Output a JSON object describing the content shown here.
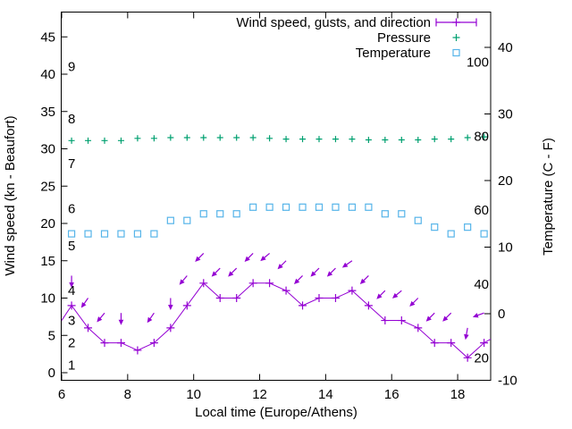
{
  "colors": {
    "background": "#ffffff",
    "text": "#000000",
    "wind": "#9400d3",
    "pressure": "#00a070",
    "temperature": "#56b4e9"
  },
  "legend": {
    "items": [
      {
        "label": "Wind speed, gusts, and direction",
        "marker": "errorbar",
        "color": "#9400d3"
      },
      {
        "label": "Pressure",
        "marker": "plus",
        "color": "#00a070"
      },
      {
        "label": "Temperature",
        "marker": "open-square",
        "color": "#56b4e9"
      }
    ]
  },
  "axes": {
    "x": {
      "label": "Local time (Europe/Athens)",
      "range": [
        6,
        19
      ],
      "ticks": [
        6,
        8,
        10,
        12,
        14,
        16,
        18
      ]
    },
    "y_left": {
      "label": "Wind speed (kn - Beaufort)",
      "range": [
        0,
        48
      ],
      "ticks": [
        0,
        5,
        10,
        15,
        20,
        25,
        30,
        35,
        40,
        45
      ]
    },
    "y_right": {
      "label": "Temperature (C - F)",
      "range": [
        -10,
        45
      ],
      "ticks": [
        -10,
        0,
        10,
        20,
        30,
        40
      ]
    }
  },
  "inner_scales": {
    "beaufort": {
      "description": "Beaufort numbers printed inside left edge",
      "labels": [
        "1",
        "2",
        "3",
        "4",
        "5",
        "6",
        "7",
        "8",
        "9"
      ],
      "knots_positions": [
        1,
        4,
        7,
        11,
        17,
        22,
        28,
        34,
        41
      ]
    },
    "fahrenheit": {
      "description": "Fahrenheit values printed inside right edge",
      "labels": [
        "20",
        "40",
        "60",
        "80",
        "100"
      ],
      "values": [
        20,
        40,
        60,
        80,
        100
      ]
    }
  },
  "chart_data": {
    "type": "line",
    "title": "",
    "xlabel": "Local time (Europe/Athens)",
    "ylabel": "Wind speed (kn - Beaufort)",
    "y2label": "Temperature (C - F)",
    "xlim": [
      6,
      19
    ],
    "ylim": [
      0,
      48
    ],
    "y2lim": [
      -10,
      45
    ],
    "grid": false,
    "legend_position": "top-right-inside",
    "x": [
      6.3,
      6.8,
      7.3,
      7.8,
      8.3,
      8.8,
      9.3,
      9.8,
      10.3,
      10.8,
      11.3,
      11.8,
      12.3,
      12.8,
      13.3,
      13.8,
      14.3,
      14.8,
      15.3,
      15.8,
      16.3,
      16.8,
      17.3,
      17.8,
      18.3,
      18.8
    ],
    "series": [
      {
        "name": "Wind speed (kn, left axis)",
        "style": "line-with-plus-markers",
        "color": "#9400d3",
        "values": [
          9,
          6,
          4,
          4,
          3,
          4,
          6,
          9,
          12,
          10,
          10,
          12,
          12,
          11,
          9,
          10,
          10,
          11,
          9,
          7,
          7,
          6,
          4,
          4,
          2,
          4
        ],
        "edge_points": {
          "left": {
            "hour": 6.0,
            "value": 7
          },
          "right": {
            "hour": 19.0,
            "value": 4.5
          }
        }
      },
      {
        "name": "Gusts with wind-direction arrows (kn, left axis)",
        "style": "direction-arrows",
        "color": "#9400d3",
        "points": [
          {
            "hour": 6.3,
            "value": 13,
            "angle_deg_from_down": 0
          },
          {
            "hour": 6.8,
            "value": 10,
            "angle_deg_from_down": 35
          },
          {
            "hour": 7.3,
            "value": 8,
            "angle_deg_from_down": 40
          },
          {
            "hour": 7.8,
            "value": 8,
            "angle_deg_from_down": 0
          },
          {
            "hour": 8.8,
            "value": 8,
            "angle_deg_from_down": 35
          },
          {
            "hour": 9.3,
            "value": 10,
            "angle_deg_from_down": 0
          },
          {
            "hour": 9.8,
            "value": 13,
            "angle_deg_from_down": 40
          },
          {
            "hour": 10.3,
            "value": 16,
            "angle_deg_from_down": 45
          },
          {
            "hour": 10.8,
            "value": 14,
            "angle_deg_from_down": 45
          },
          {
            "hour": 11.3,
            "value": 14,
            "angle_deg_from_down": 45
          },
          {
            "hour": 11.8,
            "value": 16,
            "angle_deg_from_down": 45
          },
          {
            "hour": 12.3,
            "value": 16,
            "angle_deg_from_down": 50
          },
          {
            "hour": 12.8,
            "value": 15,
            "angle_deg_from_down": 45
          },
          {
            "hour": 13.3,
            "value": 13,
            "angle_deg_from_down": 45
          },
          {
            "hour": 13.8,
            "value": 14,
            "angle_deg_from_down": 45
          },
          {
            "hour": 14.3,
            "value": 14,
            "angle_deg_from_down": 45
          },
          {
            "hour": 14.8,
            "value": 15,
            "angle_deg_from_down": 55
          },
          {
            "hour": 15.3,
            "value": 13,
            "angle_deg_from_down": 45
          },
          {
            "hour": 15.8,
            "value": 11,
            "angle_deg_from_down": 45
          },
          {
            "hour": 16.3,
            "value": 11,
            "angle_deg_from_down": 50
          },
          {
            "hour": 16.8,
            "value": 10,
            "angle_deg_from_down": 45
          },
          {
            "hour": 17.3,
            "value": 8,
            "angle_deg_from_down": 45
          },
          {
            "hour": 17.8,
            "value": 8,
            "angle_deg_from_down": 45
          },
          {
            "hour": 18.3,
            "value": 6,
            "angle_deg_from_down": 10
          },
          {
            "hour": 18.8,
            "value": 8,
            "angle_deg_from_down": 70
          }
        ]
      },
      {
        "name": "Pressure (plotted level, no numeric pressure axis shown)",
        "style": "plus-markers",
        "color": "#00a070",
        "display_values_left_axis_units": [
          31.1,
          31.1,
          31.1,
          31.1,
          31.4,
          31.4,
          31.5,
          31.5,
          31.5,
          31.5,
          31.5,
          31.5,
          31.4,
          31.3,
          31.3,
          31.3,
          31.3,
          31.3,
          31.2,
          31.2,
          31.2,
          31.2,
          31.3,
          31.3,
          31.5,
          31.6
        ]
      },
      {
        "name": "Temperature (deg C, right axis)",
        "style": "open-square-markers",
        "color": "#56b4e9",
        "values": [
          12,
          12,
          12,
          12,
          12,
          12,
          14,
          14,
          15,
          15,
          15,
          16,
          16,
          16,
          16,
          16,
          16,
          16,
          16,
          15,
          15,
          14,
          13,
          12,
          13,
          12
        ]
      }
    ]
  }
}
